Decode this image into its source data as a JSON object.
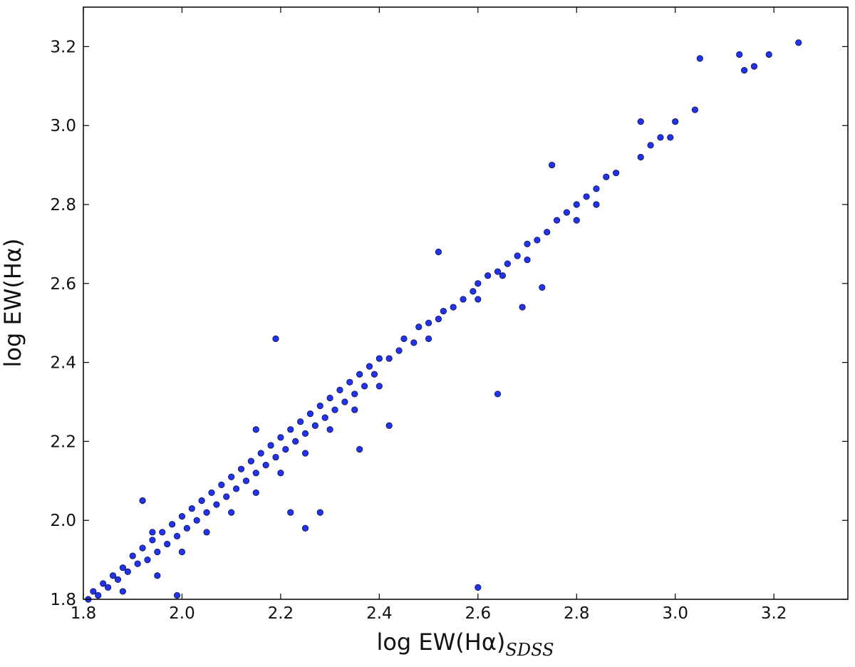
{
  "chart_data": {
    "type": "scatter",
    "xlabel": {
      "text": "log EW(Hα)",
      "subscript": "SDSS"
    },
    "ylabel": "log EW(Hα)",
    "color": "#2233f0",
    "edgecolor": "#0a0f40",
    "xlim": [
      1.8,
      3.35
    ],
    "ylim": [
      1.8,
      3.3
    ],
    "xticks": [
      1.8,
      {
        "value": 2,
        "label": "2.0"
      },
      2.2,
      2.4,
      2.6,
      2.8,
      {
        "value": 3,
        "label": "3.0"
      },
      3.2
    ],
    "yticks": [
      1.8,
      {
        "value": 2,
        "label": "2.0"
      },
      2.2,
      2.4,
      2.6,
      2.8,
      {
        "value": 3,
        "label": "3.0"
      },
      3.2
    ],
    "x": [
      1.81,
      1.82,
      1.83,
      1.84,
      1.85,
      1.86,
      1.87,
      1.88,
      1.89,
      1.9,
      1.91,
      1.92,
      1.93,
      1.94,
      1.95,
      1.96,
      1.97,
      1.98,
      1.99,
      2.0,
      2.01,
      2.02,
      2.03,
      2.04,
      2.05,
      2.06,
      2.07,
      2.08,
      2.09,
      2.1,
      2.11,
      2.12,
      2.13,
      2.14,
      2.15,
      2.16,
      2.17,
      2.18,
      2.19,
      2.2,
      2.21,
      2.22,
      2.23,
      2.24,
      2.25,
      2.26,
      2.27,
      2.28,
      2.29,
      2.3,
      2.31,
      2.32,
      2.33,
      2.34,
      2.35,
      2.36,
      2.37,
      2.38,
      2.39,
      2.4,
      2.42,
      2.44,
      2.45,
      2.47,
      2.48,
      2.5,
      2.52,
      2.53,
      2.55,
      2.57,
      2.59,
      2.6,
      2.62,
      2.64,
      2.66,
      2.68,
      2.7,
      2.72,
      2.74,
      2.76,
      2.78,
      2.8,
      2.82,
      2.84,
      2.86,
      2.88,
      2.93,
      2.95,
      2.97,
      2.99,
      3.0,
      3.04,
      1.88,
      1.95,
      2.0,
      2.05,
      2.1,
      2.15,
      2.2,
      2.25,
      2.3,
      2.35,
      2.4,
      2.5,
      2.6,
      2.65,
      2.7,
      2.8,
      2.84,
      1.92,
      1.99,
      2.19,
      2.52,
      2.6,
      2.64,
      2.42,
      2.36,
      2.25,
      2.28,
      2.22,
      2.75,
      2.69,
      2.73,
      2.93,
      3.05,
      3.13,
      3.14,
      3.16,
      3.19,
      3.25,
      2.15,
      1.94
    ],
    "y": [
      1.8,
      1.82,
      1.81,
      1.84,
      1.83,
      1.86,
      1.85,
      1.88,
      1.87,
      1.91,
      1.89,
      1.93,
      1.9,
      1.95,
      1.92,
      1.97,
      1.94,
      1.99,
      1.96,
      2.01,
      1.98,
      2.03,
      2.0,
      2.05,
      2.02,
      2.07,
      2.04,
      2.09,
      2.06,
      2.11,
      2.08,
      2.13,
      2.1,
      2.15,
      2.12,
      2.17,
      2.14,
      2.19,
      2.16,
      2.21,
      2.18,
      2.23,
      2.2,
      2.25,
      2.22,
      2.27,
      2.24,
      2.29,
      2.26,
      2.31,
      2.28,
      2.33,
      2.3,
      2.35,
      2.32,
      2.37,
      2.34,
      2.39,
      2.37,
      2.41,
      2.41,
      2.43,
      2.46,
      2.45,
      2.49,
      2.5,
      2.51,
      2.53,
      2.54,
      2.56,
      2.58,
      2.6,
      2.62,
      2.63,
      2.65,
      2.67,
      2.7,
      2.71,
      2.73,
      2.76,
      2.78,
      2.8,
      2.82,
      2.84,
      2.87,
      2.88,
      2.92,
      2.95,
      2.97,
      2.97,
      3.01,
      3.04,
      1.82,
      1.86,
      1.92,
      1.97,
      2.02,
      2.07,
      2.12,
      2.17,
      2.23,
      2.28,
      2.34,
      2.46,
      2.56,
      2.62,
      2.66,
      2.76,
      2.8,
      2.05,
      1.81,
      2.46,
      2.68,
      1.83,
      2.32,
      2.24,
      2.18,
      1.98,
      2.02,
      2.02,
      2.9,
      2.54,
      2.59,
      3.01,
      3.17,
      3.18,
      3.14,
      3.15,
      3.18,
      3.21,
      2.23,
      1.97
    ]
  }
}
